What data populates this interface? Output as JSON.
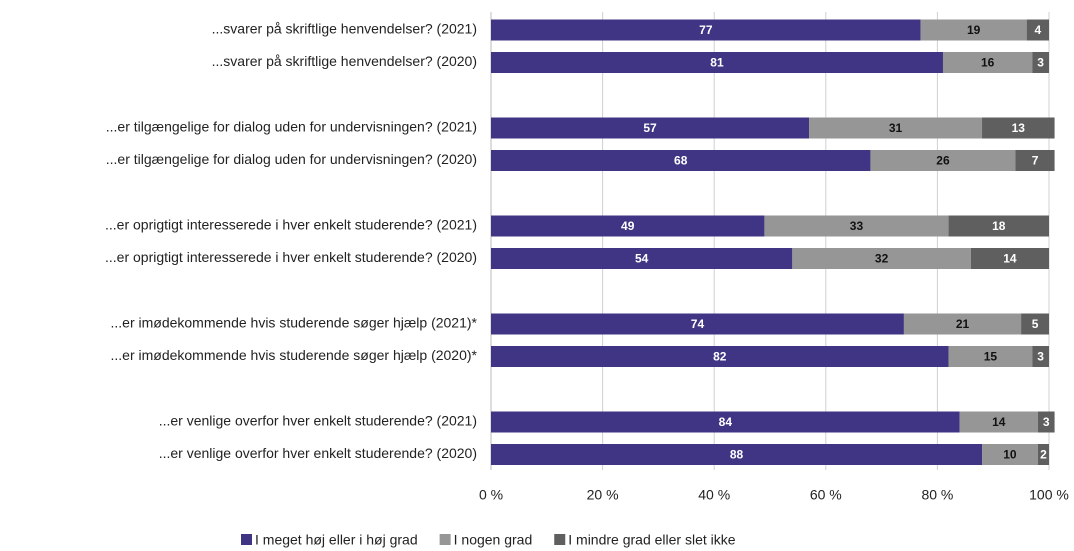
{
  "chart_data": {
    "type": "stacked-barh",
    "categories": [
      "...svarer på skriftlige henvendelser? (2021)",
      "...svarer på skriftlige henvendelser? (2020)",
      "...er tilgængelige for dialog uden for undervisningen? (2021)",
      "...er tilgængelige for dialog uden for undervisningen? (2020)",
      "...er oprigtigt interesserede i hver enkelt studerende? (2021)",
      "...er oprigtigt interesserede i hver enkelt studerende? (2020)",
      "...er imødekommende hvis studerende søger hjælp (2021)*",
      "...er imødekommende hvis studerende søger hjælp (2020)*",
      "...er venlige overfor hver enkelt studerende? (2021)",
      "...er venlige overfor hver enkelt studerende? (2020)"
    ],
    "series": [
      {
        "name": "I meget høj eller i høj grad",
        "color": "#3f3584",
        "values": [
          77,
          81,
          57,
          68,
          49,
          54,
          74,
          82,
          84,
          88
        ]
      },
      {
        "name": "I nogen grad",
        "color": "#969696",
        "values": [
          19,
          16,
          31,
          26,
          33,
          32,
          21,
          15,
          14,
          10
        ]
      },
      {
        "name": "I mindre grad eller slet ikke",
        "color": "#5f5f5f",
        "values": [
          4,
          3,
          13,
          7,
          18,
          14,
          5,
          3,
          3,
          2
        ]
      }
    ],
    "xlim": [
      0,
      100
    ],
    "xticks": [
      {
        "value": 0,
        "label": "0 %"
      },
      {
        "value": 20,
        "label": "20 %"
      },
      {
        "value": 40,
        "label": "40 %"
      },
      {
        "value": 60,
        "label": "60 %"
      },
      {
        "value": 80,
        "label": "80 %"
      },
      {
        "value": 100,
        "label": "100 %"
      }
    ],
    "grid": true,
    "legend": "bottom"
  }
}
